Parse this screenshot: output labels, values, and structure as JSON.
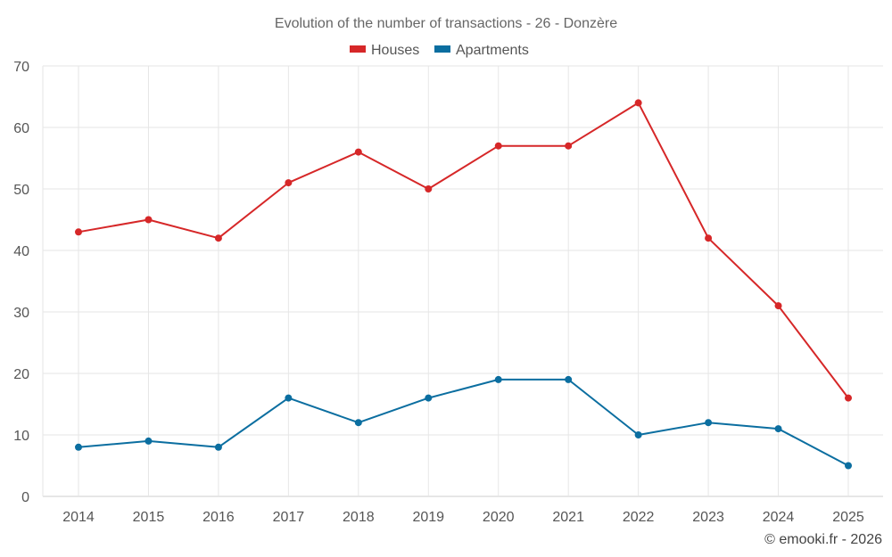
{
  "chart_data": {
    "type": "line",
    "title": "Evolution of the number of transactions - 26 - Donzère",
    "categories": [
      "2014",
      "2015",
      "2016",
      "2017",
      "2018",
      "2019",
      "2020",
      "2021",
      "2022",
      "2023",
      "2024",
      "2025"
    ],
    "series": [
      {
        "name": "Houses",
        "color": "#d62728",
        "values": [
          43,
          45,
          42,
          51,
          56,
          50,
          57,
          57,
          64,
          42,
          31,
          16
        ]
      },
      {
        "name": "Apartments",
        "color": "#0b6ea0",
        "values": [
          8,
          9,
          8,
          16,
          12,
          16,
          19,
          19,
          10,
          12,
          11,
          5
        ]
      }
    ],
    "ylim": [
      0,
      70
    ],
    "yticks": [
      "0",
      "10",
      "20",
      "30",
      "40",
      "50",
      "60",
      "70"
    ],
    "xlabel": "",
    "ylabel": "",
    "grid": true,
    "legend_position": "top-center"
  },
  "credit": "© emooki.fr - 2026"
}
